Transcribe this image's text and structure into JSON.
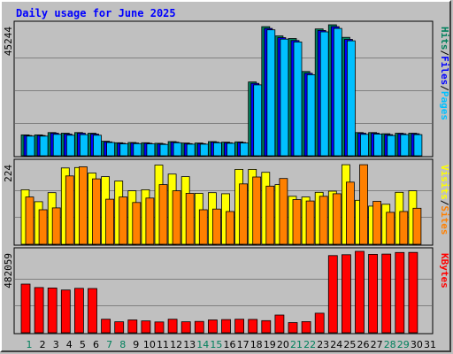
{
  "title": "Daily usage for June 2025",
  "colors": {
    "background": "#c0c0c0",
    "title": "#0000ff",
    "hits": "#00805c",
    "files": "#0000ff",
    "pages": "#00c0ff",
    "visits": "#ffff00",
    "sites": "#ff8000",
    "kbytes": "#ff0000",
    "weekday_label": "#000000",
    "weekend_label": "#00805c"
  },
  "chart_data": [
    {
      "type": "bar",
      "panel": "hits-files-pages",
      "ymax_label": "45244",
      "ylim": [
        0,
        45244
      ],
      "categories": [
        "1",
        "2",
        "3",
        "4",
        "5",
        "6",
        "7",
        "8",
        "9",
        "10",
        "11",
        "12",
        "13",
        "14",
        "15",
        "16",
        "17",
        "18",
        "19",
        "20",
        "21",
        "22",
        "23",
        "24",
        "25",
        "26",
        "27",
        "28",
        "29",
        "30",
        "31"
      ],
      "series": [
        {
          "name": "Hits",
          "values": [
            7200,
            7200,
            8000,
            7800,
            8000,
            7800,
            5000,
            4500,
            4600,
            4500,
            4300,
            4900,
            4400,
            4400,
            4900,
            4700,
            4800,
            25500,
            44600,
            41400,
            40500,
            29100,
            43800,
            45244,
            40900,
            8000,
            8000,
            7600,
            7800,
            7800,
            0
          ]
        },
        {
          "name": "Files",
          "values": [
            7000,
            7000,
            7800,
            7500,
            7800,
            7500,
            4800,
            4300,
            4400,
            4300,
            4100,
            4700,
            4200,
            4200,
            4700,
            4500,
            4600,
            25000,
            44000,
            40800,
            39800,
            28500,
            43300,
            44600,
            40200,
            7800,
            7800,
            7300,
            7600,
            7600,
            0
          ]
        },
        {
          "name": "Pages",
          "values": [
            6800,
            6800,
            7400,
            7100,
            7300,
            7100,
            4600,
            4100,
            4200,
            4100,
            3900,
            4500,
            4000,
            4000,
            4500,
            4300,
            4400,
            24500,
            43500,
            40300,
            39300,
            28000,
            42800,
            44000,
            39700,
            7400,
            7500,
            7000,
            7300,
            7300,
            0
          ]
        }
      ]
    },
    {
      "type": "bar",
      "panel": "visits-sites",
      "ymax_label": "224",
      "ylim": [
        0,
        224
      ],
      "categories": [
        "1",
        "2",
        "3",
        "4",
        "5",
        "6",
        "7",
        "8",
        "9",
        "10",
        "11",
        "12",
        "13",
        "14",
        "15",
        "16",
        "17",
        "18",
        "19",
        "20",
        "21",
        "22",
        "23",
        "24",
        "25",
        "26",
        "27",
        "28",
        "29",
        "30",
        "31"
      ],
      "series": [
        {
          "name": "Visits",
          "values": [
            150,
            117,
            142,
            210,
            211,
            196,
            186,
            174,
            147,
            150,
            218,
            193,
            186,
            140,
            142,
            139,
            206,
            206,
            198,
            164,
            132,
            130,
            143,
            146,
            219,
            121,
            105,
            110,
            143,
            147,
            0
          ]
        },
        {
          "name": "Sites",
          "values": [
            130,
            95,
            100,
            188,
            213,
            180,
            124,
            130,
            115,
            127,
            164,
            147,
            140,
            95,
            97,
            90,
            166,
            185,
            160,
            181,
            123,
            119,
            132,
            139,
            171,
            219,
            118,
            88,
            90,
            99,
            0
          ]
        }
      ]
    },
    {
      "type": "bar",
      "panel": "kbytes",
      "ymax_label": "482059",
      "ylim": [
        0,
        482059
      ],
      "categories": [
        "1",
        "2",
        "3",
        "4",
        "5",
        "6",
        "7",
        "8",
        "9",
        "10",
        "11",
        "12",
        "13",
        "14",
        "15",
        "16",
        "17",
        "18",
        "19",
        "20",
        "21",
        "22",
        "23",
        "24",
        "25",
        "26",
        "27",
        "28",
        "29",
        "30",
        "31"
      ],
      "series": [
        {
          "name": "KBytes",
          "values": [
            288000,
            268000,
            265000,
            253000,
            263000,
            262000,
            80000,
            65000,
            76000,
            70000,
            64000,
            80000,
            65000,
            67000,
            76000,
            78000,
            80000,
            79000,
            72000,
            105000,
            60000,
            66000,
            116000,
            457000,
            462000,
            482059,
            464000,
            466000,
            475000,
            476000,
            0
          ]
        }
      ]
    }
  ],
  "right_labels": {
    "top": [
      {
        "text": "Hits",
        "color": "#00805c"
      },
      {
        "text": "/",
        "color": "#000000"
      },
      {
        "text": "Files",
        "color": "#0000ff"
      },
      {
        "text": "/",
        "color": "#000000"
      },
      {
        "text": "Pages",
        "color": "#00c0ff"
      }
    ],
    "middle": [
      {
        "text": "Visits",
        "color": "#ffff00"
      },
      {
        "text": "/",
        "color": "#000000"
      },
      {
        "text": "Sites",
        "color": "#ff8000"
      }
    ],
    "bottom": [
      {
        "text": "KBytes",
        "color": "#ff0000"
      }
    ]
  },
  "weekend_days": [
    1,
    7,
    8,
    14,
    15,
    21,
    22,
    28,
    29
  ]
}
